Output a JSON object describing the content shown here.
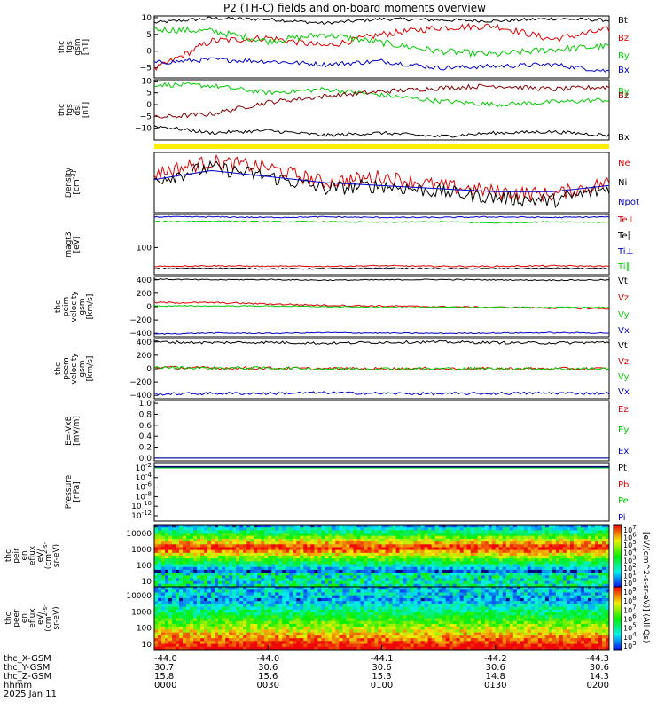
{
  "title": "P2 (TH-C) fields and on-board moments overview",
  "footer": {
    "row_labels": [
      "thc_X-GSM",
      "thc_Y-GSM",
      "thc_Z-GSM",
      "hhmm",
      "2025 Jan 11"
    ],
    "columns": [
      [
        "-44.0",
        "30.7",
        "15.8",
        "0000"
      ],
      [
        "-44.0",
        "30.6",
        "15.6",
        "0030"
      ],
      [
        "-44.1",
        "30.6",
        "15.3",
        "0100"
      ],
      [
        "-44.2",
        "30.6",
        "14.8",
        "0130"
      ],
      [
        "-44.3",
        "30.6",
        "14.3",
        "0200"
      ]
    ]
  },
  "colorbar_label": "[eV/(cm^2-s-sr-eV)] (All Qs)",
  "colors": {
    "black": "#000000",
    "red": "#e00000",
    "green": "#00cc00",
    "blue": "#0000cc",
    "yellow": "#ffee00"
  },
  "chart_data": [
    {
      "type": "line",
      "panel": "fgs_gsm",
      "ylabel_lines": [
        "thc",
        "fgs",
        "gsm",
        "[nT]"
      ],
      "ylim": [
        -8,
        10.5
      ],
      "yticks": [
        "10",
        "5",
        "0",
        "−5"
      ],
      "series": [
        {
          "name": "Bt",
          "color": "#000000",
          "levels": [
            8.5,
            9.8,
            9.5,
            8.3,
            9.6,
            9.3,
            9.0,
            9.7,
            9.2
          ],
          "noise": 0.5
        },
        {
          "name": "Bz",
          "color": "#e00000",
          "levels": [
            -5.5,
            3.0,
            4.0,
            1.5,
            5.0,
            7.0,
            7.5,
            3.5,
            6.5
          ],
          "noise": 1.0
        },
        {
          "name": "By",
          "color": "#00cc00",
          "levels": [
            6.5,
            6.0,
            3.0,
            5.0,
            2.5,
            0.0,
            -1.0,
            0.5,
            1.5
          ],
          "noise": 1.0
        },
        {
          "name": "Bx",
          "color": "#0000cc",
          "levels": [
            -3.5,
            -2.5,
            -3.0,
            -4.0,
            -3.0,
            -5.0,
            -4.5,
            -4.0,
            -6.0
          ],
          "noise": 0.7
        }
      ]
    },
    {
      "type": "line",
      "panel": "fgs_dsl",
      "ylabel_lines": [
        "thc",
        "fgs",
        "dsl",
        "[nT]"
      ],
      "ylim": [
        -15,
        10.5
      ],
      "yticks": [
        "10",
        "5",
        "0",
        "−5",
        "−10"
      ],
      "series": [
        {
          "name": "By",
          "color": "#00cc00",
          "levels": [
            8.5,
            8.0,
            5.0,
            6.5,
            4.0,
            1.5,
            0.0,
            1.0,
            2.0
          ],
          "noise": 1.0
        },
        {
          "name": "Bz",
          "color": "#880000",
          "levels": [
            -5.5,
            -4.0,
            1.0,
            3.5,
            5.5,
            7.0,
            8.0,
            6.5,
            7.5
          ],
          "noise": 1.0
        },
        {
          "name": "Bx",
          "color": "#000000",
          "levels": [
            -9.0,
            -12.0,
            -11.0,
            -13.0,
            -12.0,
            -13.5,
            -12.0,
            -11.5,
            -13.0
          ],
          "noise": 0.7
        }
      ]
    },
    {
      "type": "line",
      "panel": "density",
      "ylabel_lines": [
        "Density",
        "[cm^-3]"
      ],
      "series": [
        {
          "name": "Ne",
          "color": "#e00000",
          "levels": [
            0.65,
            0.85,
            0.75,
            0.5,
            0.6,
            0.45,
            0.35,
            0.3,
            0.5
          ],
          "noise": 0.12
        },
        {
          "name": "Ni",
          "color": "#000000",
          "levels": [
            0.55,
            0.75,
            0.6,
            0.4,
            0.45,
            0.35,
            0.25,
            0.2,
            0.4
          ],
          "noise": 0.12
        },
        {
          "name": "Npot",
          "color": "#0000cc",
          "levels": [
            0.55,
            0.7,
            0.6,
            0.5,
            0.45,
            0.4,
            0.35,
            0.35,
            0.45
          ],
          "noise": 0.0
        }
      ]
    },
    {
      "type": "line",
      "panel": "temperature",
      "ylabel_lines": [
        "magt3",
        "[eV]"
      ],
      "yticks": [
        "100"
      ],
      "series": [
        {
          "name": "Te⊥",
          "color": "#e00000",
          "levels": [
            0.14,
            0.15,
            0.14,
            0.14,
            0.15,
            0.14,
            0.14,
            0.15,
            0.14
          ],
          "noise": 0.01
        },
        {
          "name": "Te∥",
          "color": "#000000",
          "levels": [
            0.1,
            0.11,
            0.1,
            0.1,
            0.11,
            0.1,
            0.1,
            0.11,
            0.1
          ],
          "noise": 0.01
        },
        {
          "name": "Ti⊥",
          "color": "#0000cc",
          "levels": [
            0.96,
            0.96,
            0.95,
            0.96,
            0.95,
            0.95,
            0.96,
            0.95,
            0.96
          ],
          "noise": 0.01
        },
        {
          "name": "Ti∥",
          "color": "#00cc00",
          "levels": [
            0.88,
            0.89,
            0.88,
            0.88,
            0.87,
            0.88,
            0.86,
            0.88,
            0.87
          ],
          "noise": 0.01
        }
      ]
    },
    {
      "type": "line",
      "panel": "peim_velocity",
      "ylabel_lines": [
        "thc",
        "peim",
        "velocity",
        "gsm",
        "[km/s]"
      ],
      "ylim": [
        -450,
        450
      ],
      "yticks": [
        "400",
        "200",
        "0",
        "−200",
        "−400"
      ],
      "series": [
        {
          "name": "Vt",
          "color": "#000000",
          "levels": [
            410,
            400,
            405,
            395,
            400,
            405,
            400,
            395,
            400
          ],
          "noise": 8
        },
        {
          "name": "Vz",
          "color": "#e00000",
          "levels": [
            60,
            60,
            40,
            20,
            10,
            0,
            -10,
            -20,
            -30
          ],
          "noise": 12
        },
        {
          "name": "Vy",
          "color": "#00cc00",
          "levels": [
            10,
            10,
            10,
            0,
            -10,
            -10,
            -10,
            -10,
            -10
          ],
          "noise": 8
        },
        {
          "name": "Vx",
          "color": "#0000cc",
          "levels": [
            -410,
            -395,
            -400,
            -390,
            -395,
            -400,
            -395,
            -390,
            -395
          ],
          "noise": 8
        }
      ]
    },
    {
      "type": "line",
      "panel": "peem_velocity",
      "ylabel_lines": [
        "thc",
        "peem",
        "velocity",
        "gsm",
        "[km/s]"
      ],
      "ylim": [
        -450,
        450
      ],
      "yticks": [
        "400",
        "200",
        "0",
        "−200",
        "−400"
      ],
      "series": [
        {
          "name": "Vt",
          "color": "#000000",
          "levels": [
            400,
            390,
            395,
            380,
            395,
            400,
            390,
            385,
            395
          ],
          "noise": 20
        },
        {
          "name": "Vz",
          "color": "#e00000",
          "levels": [
            20,
            10,
            10,
            0,
            0,
            0,
            0,
            0,
            0
          ],
          "noise": 22
        },
        {
          "name": "Vy",
          "color": "#00cc00",
          "levels": [
            20,
            10,
            10,
            0,
            0,
            0,
            0,
            0,
            0
          ],
          "noise": 22
        },
        {
          "name": "Vx",
          "color": "#0000cc",
          "levels": [
            -380,
            -370,
            -370,
            -360,
            -370,
            -375,
            -370,
            -365,
            -370
          ],
          "noise": 20
        }
      ]
    },
    {
      "type": "line",
      "panel": "efield",
      "ylabel_lines": [
        "E=-VxB",
        "[mV/m]"
      ],
      "ylim": [
        -0.05,
        1.05
      ],
      "yticks": [
        "1.0",
        "0.8",
        "0.6",
        "0.4",
        "0.2",
        "0.0"
      ],
      "series": [
        {
          "name": "Ez",
          "color": "#e00000",
          "levels": [
            0,
            0,
            0,
            0,
            0,
            0,
            0,
            0,
            0
          ],
          "noise": 0
        },
        {
          "name": "Ey",
          "color": "#00cc00",
          "levels": [
            0,
            0,
            0,
            0,
            0,
            0,
            0,
            0,
            0
          ],
          "noise": 0
        },
        {
          "name": "Ex",
          "color": "#0000cc",
          "levels": [
            0,
            0,
            0,
            0,
            0,
            0,
            0,
            0,
            0
          ],
          "noise": 0
        }
      ]
    },
    {
      "type": "line",
      "panel": "pressure",
      "ylabel_lines": [
        "Pressure",
        "[nPa]"
      ],
      "yticks": [
        "10^-2",
        "10^-4",
        "10^-6",
        "10^-8",
        "10^-10",
        "10^-12"
      ],
      "series": [
        {
          "name": "Pt",
          "color": "#000000",
          "levels": [
            0.02,
            0.02,
            0.02,
            0.02,
            0.02,
            0.02,
            0.02,
            0.02,
            0.02
          ],
          "noise": 0
        },
        {
          "name": "Pb",
          "color": "#e00000",
          "levels": [
            0.01,
            0.012,
            0.01,
            0.01,
            0.011,
            0.01,
            0.01,
            0.01,
            0.01
          ],
          "noise": 0
        },
        {
          "name": "Pe",
          "color": "#00cc00",
          "levels": [
            0.01,
            0.01,
            0.01,
            0.01,
            0.01,
            0.01,
            0.01,
            0.01,
            0.01
          ],
          "noise": 0
        },
        {
          "name": "Pi",
          "color": "#0000cc",
          "levels": [
            0.015,
            0.015,
            0.015,
            0.015,
            0.015,
            0.015,
            0.015,
            0.015,
            0.015
          ],
          "noise": 0
        }
      ]
    },
    {
      "type": "heatmap",
      "panel": "peir_eflux",
      "ylabel_lines": [
        "thc",
        "peir",
        "en",
        "eflux",
        "eV/",
        "(cm^2-s-",
        "sr-eV)"
      ],
      "yticks": [
        "10000",
        "1000",
        "100",
        "10"
      ],
      "colorbar_ticks": [
        "10^7",
        "10^6",
        "10^5",
        "10^4",
        "10^3",
        "10^2",
        "10^1",
        "10^0"
      ]
    },
    {
      "type": "heatmap",
      "panel": "peer_eflux",
      "ylabel_lines": [
        "thc",
        "peer",
        "en",
        "eflux",
        "eV/",
        "(cm^2-s-",
        "sr-eV)"
      ],
      "yticks": [
        "10000",
        "1000",
        "100",
        "10"
      ],
      "colorbar_ticks": [
        "10^9",
        "10^8",
        "10^7",
        "10^6",
        "10^5",
        "10^4",
        "10^3"
      ]
    }
  ]
}
